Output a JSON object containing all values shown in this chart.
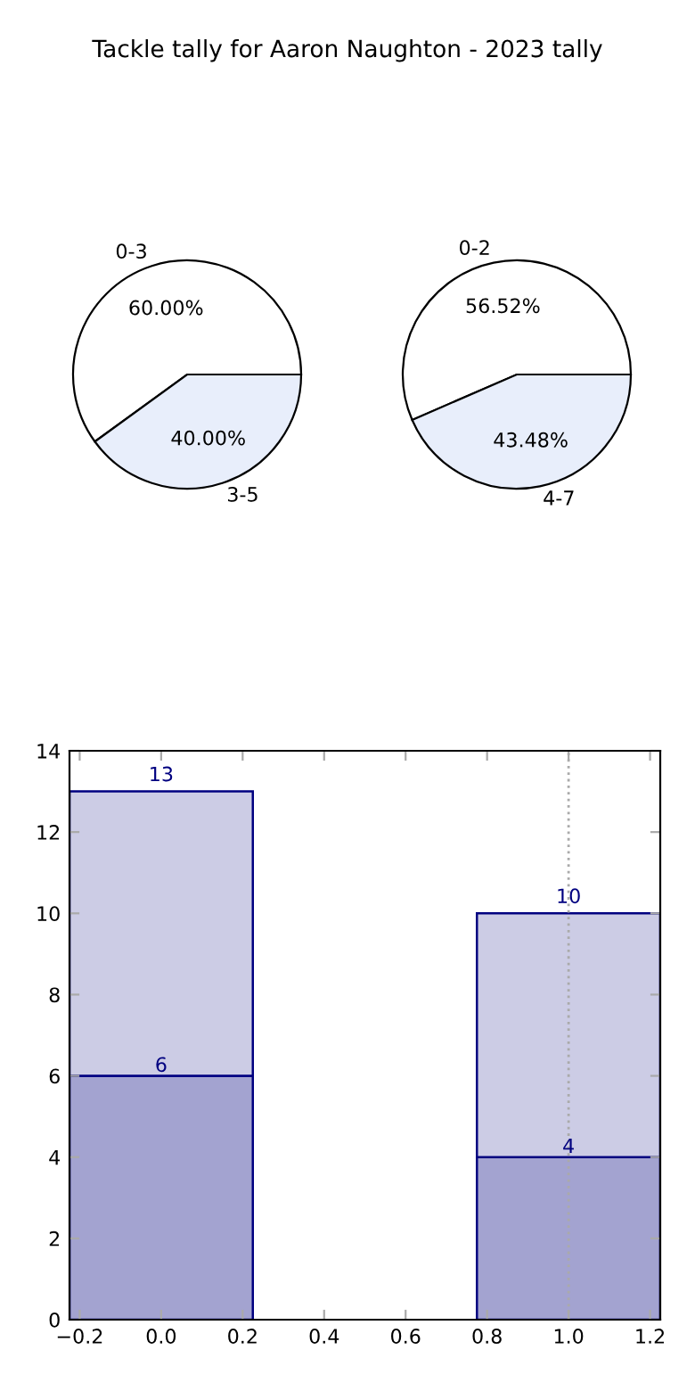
{
  "chart_data": [
    {
      "type": "pie",
      "title": "Tackle tally for Aaron Naughton - 2023 tally",
      "categories": [
        "0-3",
        "3-5"
      ],
      "values": [
        60,
        40
      ],
      "value_labels": [
        "60.00%",
        "40.00%"
      ],
      "colors": [
        "#ffffff",
        "#e8eefb"
      ]
    },
    {
      "type": "pie",
      "categories": [
        "0-2",
        "4-7"
      ],
      "values": [
        56.52,
        43.48
      ],
      "value_labels": [
        "56.52%",
        "43.48%"
      ],
      "colors": [
        "#ffffff",
        "#e8eefb"
      ]
    },
    {
      "type": "bar",
      "x": [
        0,
        1
      ],
      "stacked": true,
      "series": [
        {
          "color": "#a3a3d0",
          "values": [
            6,
            4
          ],
          "value_labels": [
            "6",
            "4"
          ]
        },
        {
          "color": "#ccccE5",
          "values": [
            7,
            6
          ]
        }
      ],
      "totals": [
        "13",
        "10"
      ],
      "xlim": [
        -0.225,
        1.225
      ],
      "xticks": [
        {
          "value": -0.2,
          "label": "−0.2"
        },
        {
          "value": 0.0,
          "label": "0.0"
        },
        0.2,
        0.4,
        0.6,
        0.8,
        {
          "value": 1.0,
          "label": "1.0"
        },
        1.2
      ],
      "ylim": [
        0,
        14
      ],
      "yticks": [
        0,
        2,
        4,
        6,
        8,
        10,
        12,
        14
      ],
      "ref_lines": [
        {
          "axis": "x",
          "value": 1,
          "color": "#aaaaaa",
          "line_style": "dotted"
        }
      ]
    }
  ]
}
